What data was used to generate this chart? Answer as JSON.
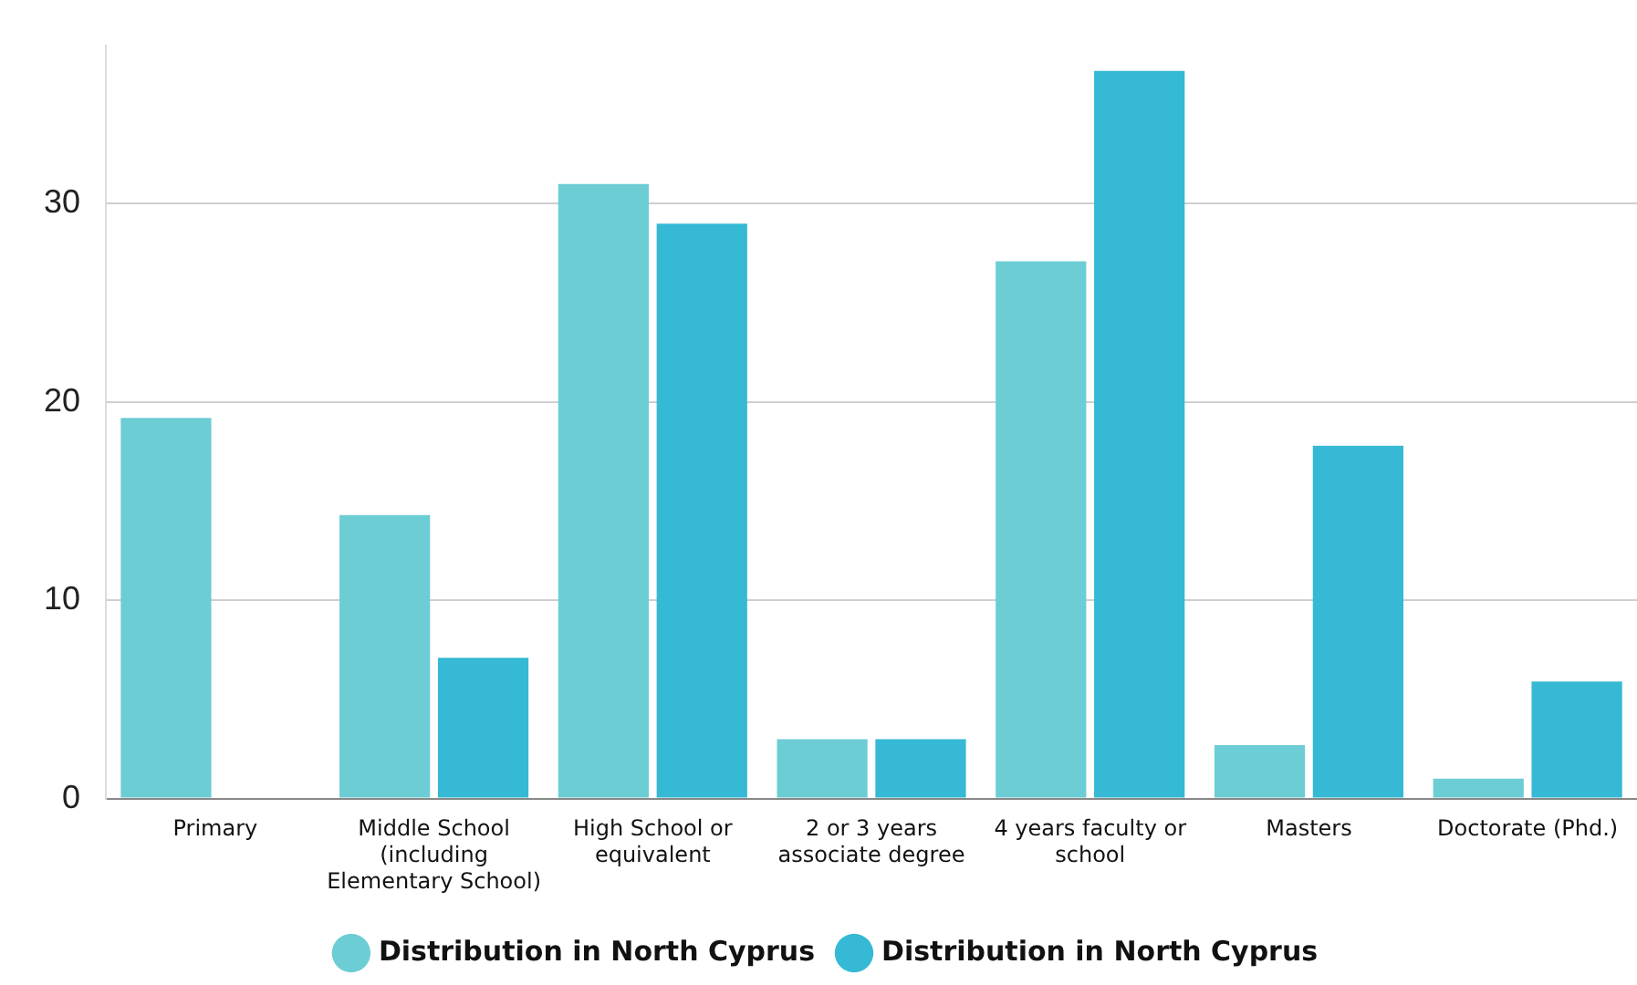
{
  "chart_data": {
    "type": "bar",
    "categories": [
      "Primary",
      "Middle School (including Elementary School)",
      "High School or equivalent",
      "2 or 3 years associate degree",
      "4 years faculty or school",
      "Masters",
      "Doctorate (Phd.)"
    ],
    "series": [
      {
        "name": "Distribution in North Cyprus",
        "color": "#6ccdd4",
        "values": [
          19.2,
          14.3,
          31.0,
          3.0,
          27.1,
          2.7,
          1.0
        ]
      },
      {
        "name": "Distribution in North Cyprus",
        "color": "#35b9d4",
        "values": [
          0,
          7.1,
          29.0,
          3.0,
          36.7,
          17.8,
          5.9
        ]
      }
    ],
    "ylim": [
      0,
      38
    ],
    "yticks": [
      0,
      10,
      20,
      30
    ],
    "grid": "y",
    "legend": "bottom"
  }
}
